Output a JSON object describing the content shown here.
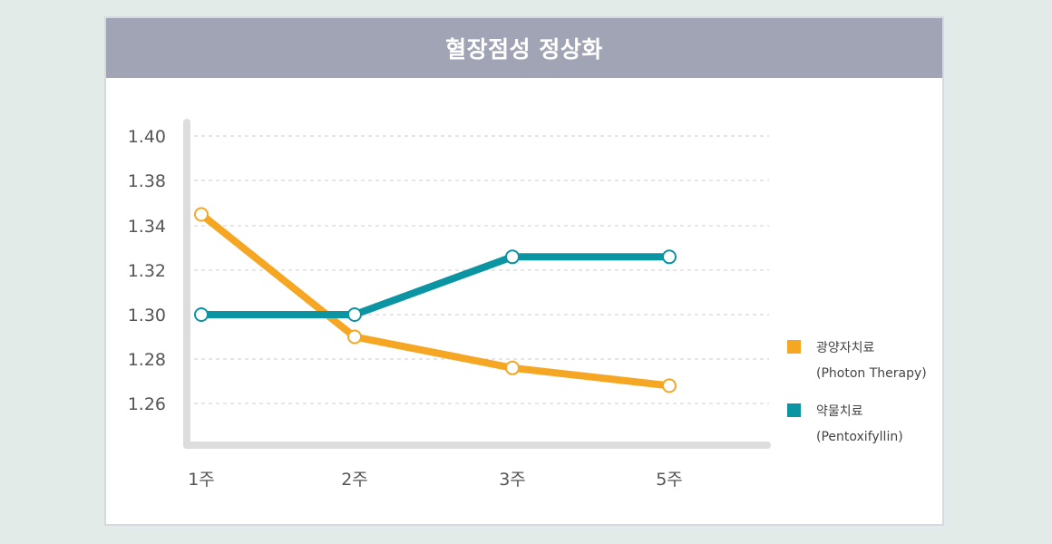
{
  "chart_data": {
    "type": "line",
    "title": "혈장점성 정상화",
    "categories": [
      "1주",
      "2주",
      "3주",
      "5주"
    ],
    "yticks": [
      "1.40",
      "1.38",
      "1.34",
      "1.32",
      "1.30",
      "1.28",
      "1.26"
    ],
    "grid": true,
    "legend_position": "right",
    "series": [
      {
        "name": "광양자치료",
        "name_sub": "(Photon Therapy)",
        "color": "#f5a623",
        "values": [
          1.35,
          1.29,
          1.276,
          1.268
        ]
      },
      {
        "name": "약물치료",
        "name_sub": "(Pentoxifyllin)",
        "color": "#0b95a3",
        "values": [
          1.3,
          1.3,
          1.326,
          1.326
        ]
      }
    ]
  },
  "colors": {
    "title_bar": "#a1a4b5",
    "axis": "#dddddd",
    "grid": "#cccccc"
  }
}
